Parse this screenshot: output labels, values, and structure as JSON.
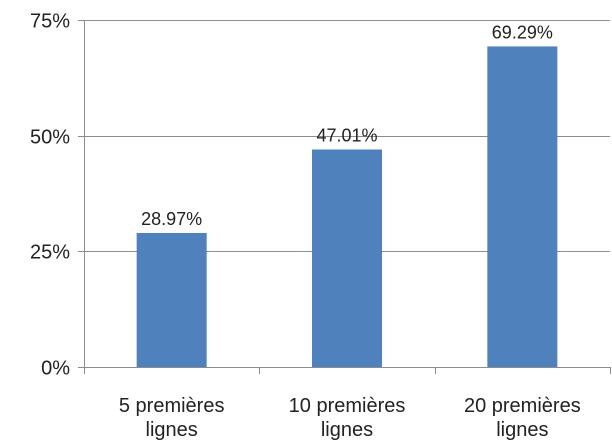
{
  "chart_data": {
    "type": "bar",
    "title": "",
    "xlabel": "",
    "ylabel": "",
    "categories": [
      "5 premières lignes",
      "10 premières lignes",
      "20 premières lignes"
    ],
    "category_lines": [
      [
        "5 premières",
        "lignes"
      ],
      [
        "10 premières",
        "lignes"
      ],
      [
        "20 premières",
        "lignes"
      ]
    ],
    "values": [
      28.97,
      47.01,
      69.29
    ],
    "data_labels": [
      "28.97%",
      "47.01%",
      "69.29%"
    ],
    "ylim": [
      0,
      75
    ],
    "yticks": [
      0,
      25,
      50,
      75
    ],
    "ytick_labels": [
      "0%",
      "25%",
      "50%",
      "75%"
    ],
    "grid": true,
    "legend": "none",
    "bar_color": "#4F81BD",
    "grid_color": "#8C8C8C",
    "axis_color": "#8C8C8C"
  }
}
